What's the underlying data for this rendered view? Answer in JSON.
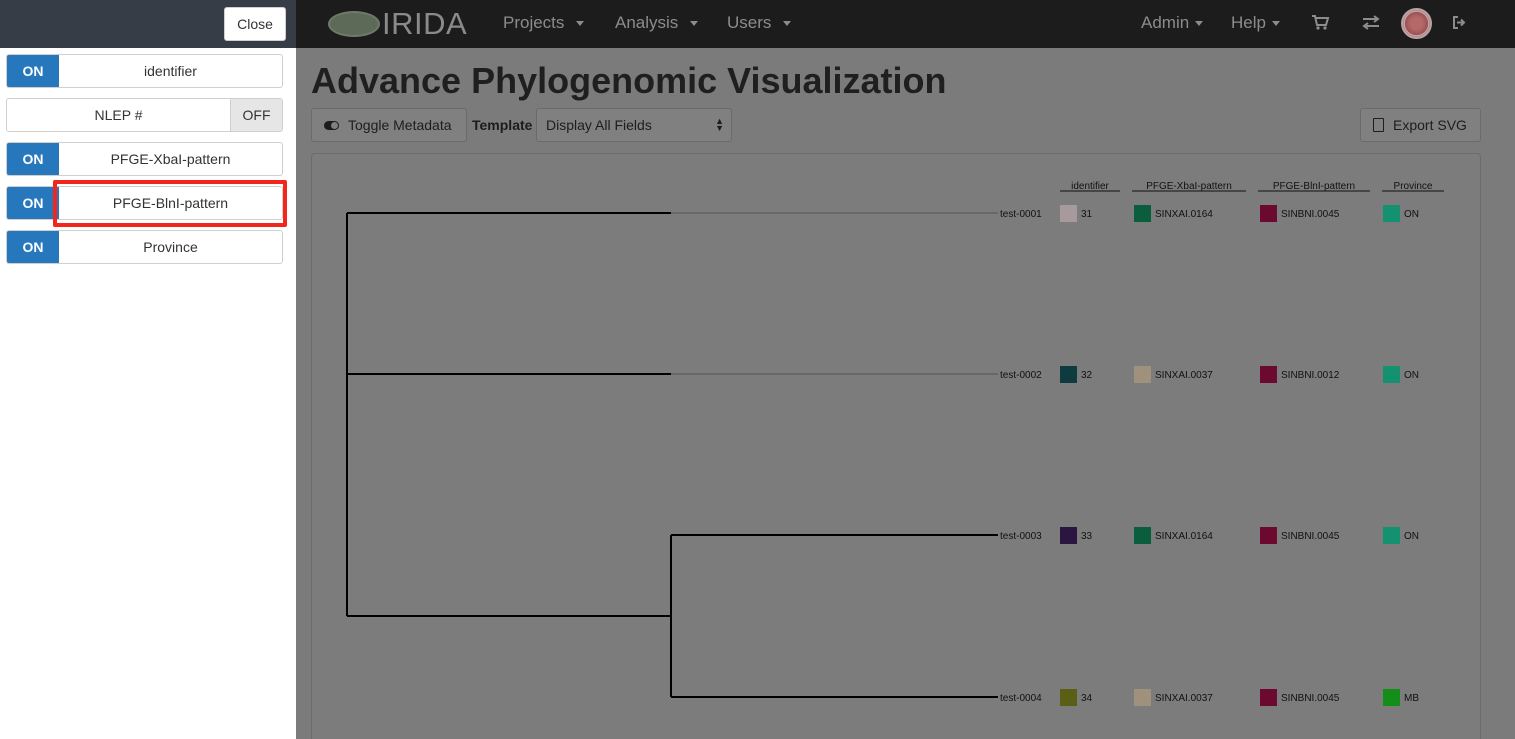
{
  "navbar": {
    "brand": "IRIDA",
    "menus": [
      {
        "label": "Projects"
      },
      {
        "label": "Analysis"
      },
      {
        "label": "Users"
      }
    ],
    "right_menus": [
      {
        "label": "Admin"
      },
      {
        "label": "Help"
      }
    ],
    "icons": [
      "cart-icon",
      "transfer-icon",
      "avatar",
      "logout-icon"
    ]
  },
  "page": {
    "title": "Advance Phylogenomic Visualization",
    "toggle_metadata_label": "Toggle Metadata",
    "template_label": "Template",
    "template_value": "Display All Fields",
    "export_label": "Export SVG"
  },
  "sidebar": {
    "close_label": "Close",
    "fields": [
      {
        "label": "identifier",
        "state": "ON"
      },
      {
        "label": "NLEP #",
        "state": "OFF"
      },
      {
        "label": "PFGE-XbaI-pattern",
        "state": "ON"
      },
      {
        "label": "PFGE-BlnI-pattern",
        "state": "ON"
      },
      {
        "label": "Province",
        "state": "ON"
      }
    ]
  },
  "tree": {
    "columns": [
      "identifier",
      "PFGE-XbaI-pattern",
      "PFGE-BlnI-pattern",
      "Province"
    ],
    "rows": [
      {
        "leaf": "test-0001",
        "identifier": "31",
        "xbai": "SINXAI.0164",
        "blni": "SINBNI.0045",
        "province": "ON",
        "colors": [
          "#a79a9c",
          "#0b5e3d",
          "#6b0a2e",
          "#139171"
        ]
      },
      {
        "leaf": "test-0002",
        "identifier": "32",
        "xbai": "SINXAI.0037",
        "blni": "SINBNI.0012",
        "province": "ON",
        "colors": [
          "#0d3b40",
          "#a0917c",
          "#6b0a2e",
          "#139171"
        ]
      },
      {
        "leaf": "test-0003",
        "identifier": "33",
        "xbai": "SINXAI.0164",
        "blni": "SINBNI.0045",
        "province": "ON",
        "colors": [
          "#2a1640",
          "#0b5e3d",
          "#6b0a2e",
          "#139171"
        ]
      },
      {
        "leaf": "test-0004",
        "identifier": "34",
        "xbai": "SINXAI.0037",
        "blni": "SINBNI.0045",
        "province": "MB",
        "colors": [
          "#5b5f15",
          "#a0917c",
          "#6b0a2e",
          "#138f19"
        ]
      }
    ]
  },
  "colors": {
    "switch_on": "#2777bd",
    "highlight": "#f3261b"
  }
}
